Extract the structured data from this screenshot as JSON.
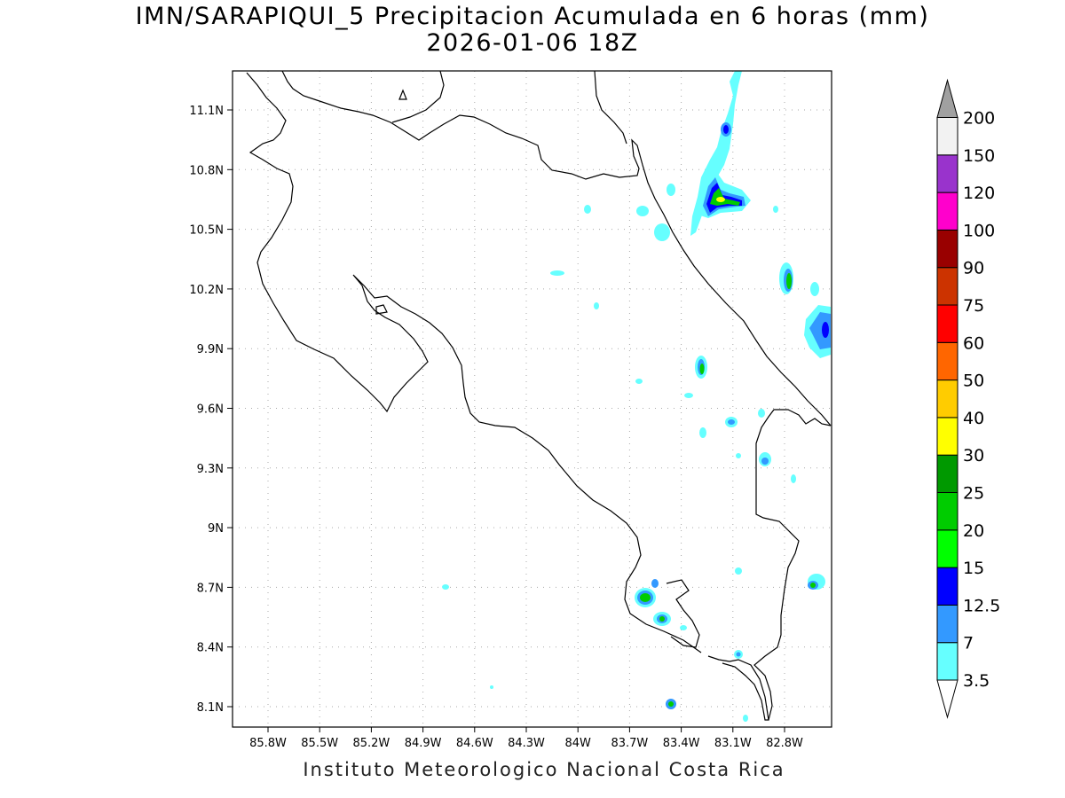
{
  "title": {
    "line1": "IMN/SARAPIQUI_5 Precipitacion Acumulada en 6 horas (mm)",
    "line2": "2026-01-06 18Z"
  },
  "footer": "Instituto Meteorologico Nacional Costa Rica",
  "map": {
    "type": "precipitation-contour-map",
    "region": "Costa Rica",
    "lon_range": [
      -86.1,
      -82.55
    ],
    "lat_range": [
      8.0,
      11.3
    ],
    "x_ticks": [
      "85.8W",
      "85.5W",
      "85.2W",
      "84.9W",
      "84.6W",
      "84.3W",
      "84W",
      "83.7W",
      "83.4W",
      "83.1W",
      "82.8W"
    ],
    "y_ticks": [
      "11.1N",
      "10.8N",
      "10.5N",
      "10.2N",
      "9.9N",
      "9.6N",
      "9.3N",
      "9N",
      "8.7N",
      "8.4N",
      "8.1N"
    ],
    "grid": "dotted"
  },
  "legend": {
    "levels": [
      "3.5",
      "7",
      "12.5",
      "15",
      "20",
      "25",
      "30",
      "40",
      "50",
      "60",
      "75",
      "90",
      "100",
      "120",
      "150",
      "200"
    ],
    "colors": [
      "#66ffff",
      "#3399ff",
      "#0000ff",
      "#00ff00",
      "#00cc00",
      "#009900",
      "#ffff00",
      "#ffcc00",
      "#ff6600",
      "#ff0000",
      "#cc3300",
      "#990000",
      "#ff00cc",
      "#9933cc",
      "#f2f2f2",
      "#a0a0a0"
    ]
  }
}
